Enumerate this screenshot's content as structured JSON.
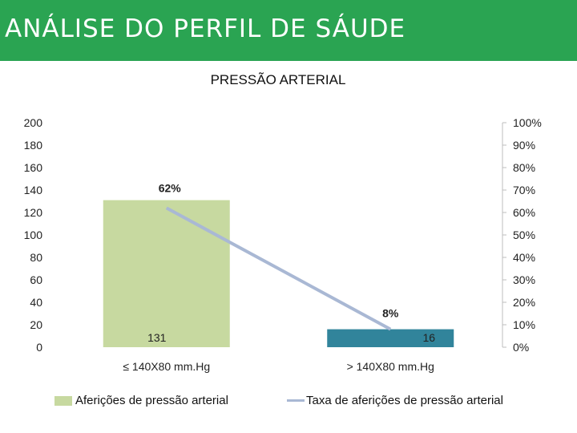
{
  "header": {
    "title": "ANÁLISE DO PERFIL DE SÁUDE"
  },
  "colors": {
    "header_bg": "#2aa452",
    "bar1": "#c7d9a0",
    "bar2": "#31849b",
    "line": "#a9b8d4"
  },
  "chart_data": {
    "type": "bar",
    "title": "PRESSÃO ARTERIAL",
    "categories": [
      "≤ 140X80 mm.Hg",
      "> 140X80 mm.Hg"
    ],
    "series": [
      {
        "name": "Aferições de pressão arterial",
        "type": "bar",
        "axis": "left",
        "values": [
          131,
          16
        ],
        "labels": [
          "131",
          "16"
        ]
      },
      {
        "name": "Taxa de aferições de pressão arterial",
        "type": "line",
        "axis": "right",
        "values": [
          62,
          8
        ],
        "labels": [
          "62%",
          "8%"
        ]
      }
    ],
    "y_left": {
      "min": 0,
      "max": 200,
      "ticks": [
        "0",
        "20",
        "40",
        "60",
        "80",
        "100",
        "120",
        "140",
        "160",
        "180",
        "200"
      ]
    },
    "y_right": {
      "min": 0,
      "max": 100,
      "ticks": [
        "0%",
        "10%",
        "20%",
        "30%",
        "40%",
        "50%",
        "60%",
        "70%",
        "80%",
        "90%",
        "100%"
      ]
    },
    "legend": "bottom",
    "grid": false
  }
}
